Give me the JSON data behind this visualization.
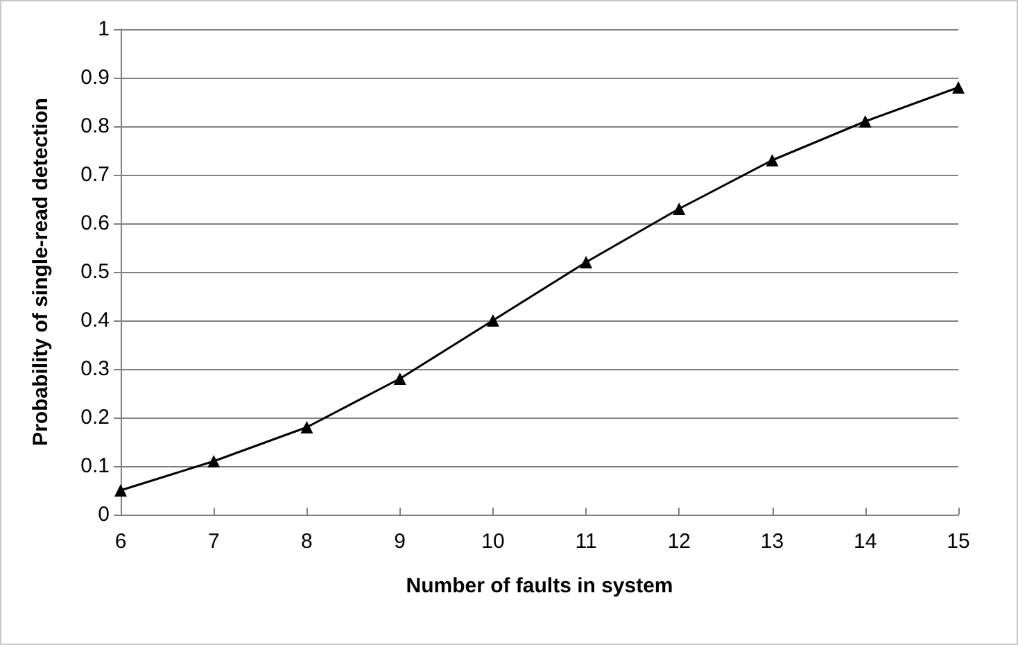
{
  "chart_data": {
    "type": "line",
    "xlabel": "Number of faults in system",
    "ylabel": "Probability of single-read detection",
    "x": [
      6,
      7,
      8,
      9,
      10,
      11,
      12,
      13,
      14,
      15
    ],
    "series": [
      {
        "color": "#000000",
        "values": [
          0.05,
          0.11,
          0.18,
          0.28,
          0.4,
          0.52,
          0.63,
          0.73,
          0.81,
          0.88
        ]
      }
    ],
    "xlim": [
      6,
      15
    ],
    "xticks": [
      6,
      7,
      8,
      9,
      10,
      11,
      12,
      13,
      14,
      15
    ],
    "ylim": [
      0,
      1
    ],
    "yticks": [
      0,
      0.1,
      0.2,
      0.3,
      0.4,
      0.5,
      0.6,
      0.7,
      0.8,
      0.9,
      1
    ],
    "grid": "y",
    "marker": "triangle",
    "line_style": "solid"
  }
}
